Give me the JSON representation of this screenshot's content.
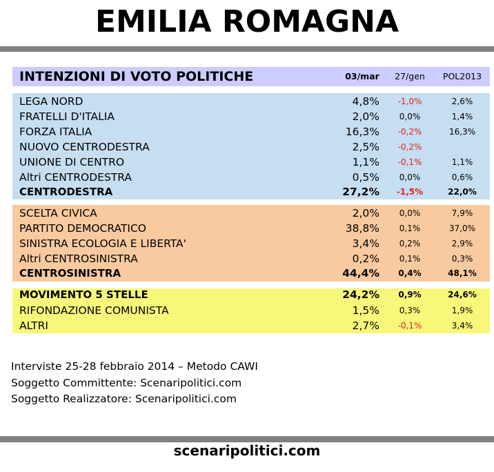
{
  "title": "EMILIA ROMAGNA",
  "table": {
    "heading": "INTENZIONI DI VOTO POLITICHE",
    "columns": [
      "03/mar",
      "27/gen",
      "POL2013"
    ]
  },
  "chart_data": {
    "type": "table",
    "columns": [
      "03/mar",
      "27/gen",
      "POL2013"
    ],
    "groups": [
      {
        "color": "#c6def1",
        "rows": [
          {
            "name": "LEGA NORD",
            "values": [
              "4,8%",
              "-1,0%",
              "2,6%"
            ]
          },
          {
            "name": "FRATELLI D'ITALIA",
            "values": [
              "2,0%",
              "0,0%",
              "1,4%"
            ]
          },
          {
            "name": "FORZA ITALIA",
            "values": [
              "16,3%",
              "-0,2%",
              "16,3%"
            ]
          },
          {
            "name": "NUOVO CENTRODESTRA",
            "values": [
              "2,5%",
              "-0,2%",
              ""
            ]
          },
          {
            "name": "UNIONE DI CENTRO",
            "values": [
              "1,1%",
              "-0,1%",
              "1,1%"
            ]
          },
          {
            "name": "Altri CENTRODESTRA",
            "values": [
              "0,5%",
              "0,0%",
              "0,6%"
            ]
          },
          {
            "name": "CENTRODESTRA",
            "values": [
              "27,2%",
              "-1,5%",
              "22,0%"
            ],
            "total": true
          }
        ]
      },
      {
        "color": "#f9c99f",
        "rows": [
          {
            "name": "SCELTA CIVICA",
            "values": [
              "2,0%",
              "0,0%",
              "7,9%"
            ]
          },
          {
            "name": "PARTITO DEMOCRATICO",
            "values": [
              "38,8%",
              "0,1%",
              "37,0%"
            ]
          },
          {
            "name": "SINISTRA ECOLOGIA E LIBERTA'",
            "values": [
              "3,4%",
              "0,2%",
              "2,9%"
            ]
          },
          {
            "name": "Altri CENTROSINISTRA",
            "values": [
              "0,2%",
              "0,1%",
              "0,3%"
            ]
          },
          {
            "name": "CENTROSINISTRA",
            "values": [
              "44,4%",
              "0,4%",
              "48,1%"
            ],
            "total": true
          }
        ]
      },
      {
        "color": "#f7f77a",
        "rows": [
          {
            "name": "MOVIMENTO 5 STELLE",
            "values": [
              "24,2%",
              "0,9%",
              "24,6%"
            ],
            "total": true
          },
          {
            "name": "RIFONDAZIONE COMUNISTA",
            "values": [
              "1,5%",
              "0,3%",
              "1,9%"
            ]
          },
          {
            "name": "ALTRI",
            "values": [
              "2,7%",
              "-0,1%",
              "3,4%"
            ]
          }
        ]
      }
    ]
  },
  "notes": {
    "line1": "Interviste 25-28 febbraio 2014 – Metodo CAWI",
    "line2": "Soggetto Committente: Scenaripolitici.com",
    "line3": "Soggetto Realizzatore: Scenaripolitici.com"
  },
  "footer": "scenaripolitici.com",
  "colors": {
    "header_band": "#ccccff",
    "negative": "#e02020",
    "rule": "#808080"
  }
}
